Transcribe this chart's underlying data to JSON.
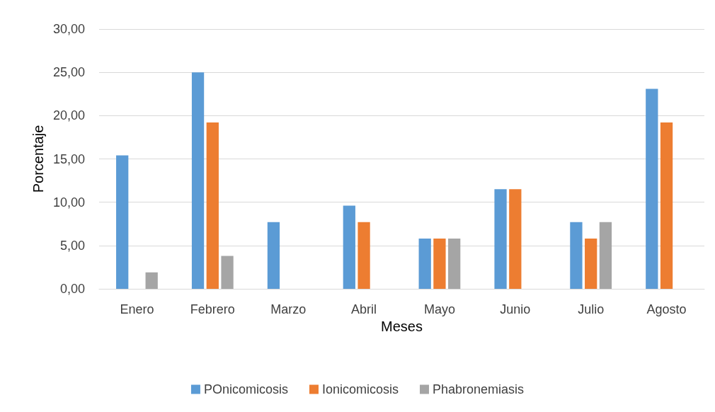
{
  "chart_data": {
    "type": "bar",
    "xlabel": "Meses",
    "ylabel": "Porcentaje",
    "categories": [
      "Enero",
      "Febrero",
      "Marzo",
      "Abril",
      "Mayo",
      "Junio",
      "Julio",
      "Agosto"
    ],
    "series": [
      {
        "name": "POnicomicosis",
        "color": "#5b9bd5",
        "values": [
          15.4,
          25.0,
          7.7,
          9.6,
          5.8,
          11.5,
          7.7,
          23.1
        ]
      },
      {
        "name": "Ionicomicosis",
        "color": "#ed7d31",
        "values": [
          0,
          19.2,
          0,
          7.7,
          5.8,
          11.5,
          5.8,
          19.2
        ]
      },
      {
        "name": "Phabronemiasis",
        "color": "#a5a5a5",
        "values": [
          1.9,
          3.8,
          0,
          0,
          5.8,
          0,
          7.7,
          0
        ]
      }
    ],
    "ylim": [
      0,
      30
    ],
    "yticks": [
      {
        "value": 0,
        "label": "0,00"
      },
      {
        "value": 5,
        "label": "5,00"
      },
      {
        "value": 10,
        "label": "10,00"
      },
      {
        "value": 15,
        "label": "15,00"
      },
      {
        "value": 20,
        "label": "20,00"
      },
      {
        "value": 25,
        "label": "25,00"
      },
      {
        "value": 30,
        "label": "30,00"
      }
    ],
    "grid": "y",
    "legend": "bottom"
  }
}
